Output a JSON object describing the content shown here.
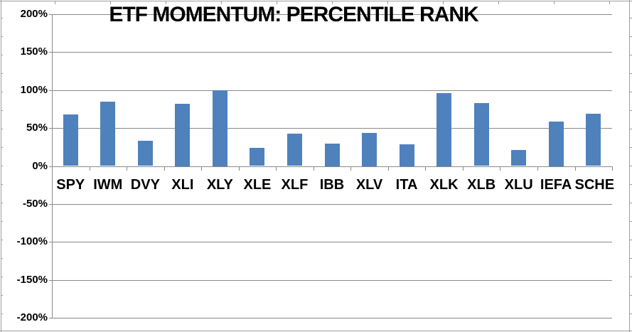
{
  "chart_data": {
    "type": "bar",
    "title": "ETF MOMENTUM: PERCENTILE RANK",
    "categories": [
      "SPY",
      "IWM",
      "DVY",
      "XLI",
      "XLY",
      "XLE",
      "XLF",
      "IBB",
      "XLV",
      "ITA",
      "XLK",
      "XLB",
      "XLU",
      "IEFA",
      "SCHE"
    ],
    "values": [
      68,
      85,
      33,
      82,
      100,
      24,
      43,
      30,
      44,
      29,
      96,
      83,
      21,
      59,
      69
    ],
    "value_unit": "%",
    "xlabel": "",
    "ylabel": "",
    "ylim": [
      -200,
      200
    ],
    "ytick_values": [
      200,
      150,
      100,
      50,
      0,
      -50,
      -100,
      -150,
      -200
    ],
    "ytick_labels": [
      "200%",
      "150%",
      "100%",
      "50%",
      "0%",
      "-50%",
      "-100%",
      "-150%",
      "-200%"
    ],
    "grid": true,
    "legend": false,
    "bar_color": "#4F81BD",
    "gridline_color": "#8A8A8A",
    "text_color": "#000000",
    "worksheet_line_color": "#9E9E9E"
  }
}
